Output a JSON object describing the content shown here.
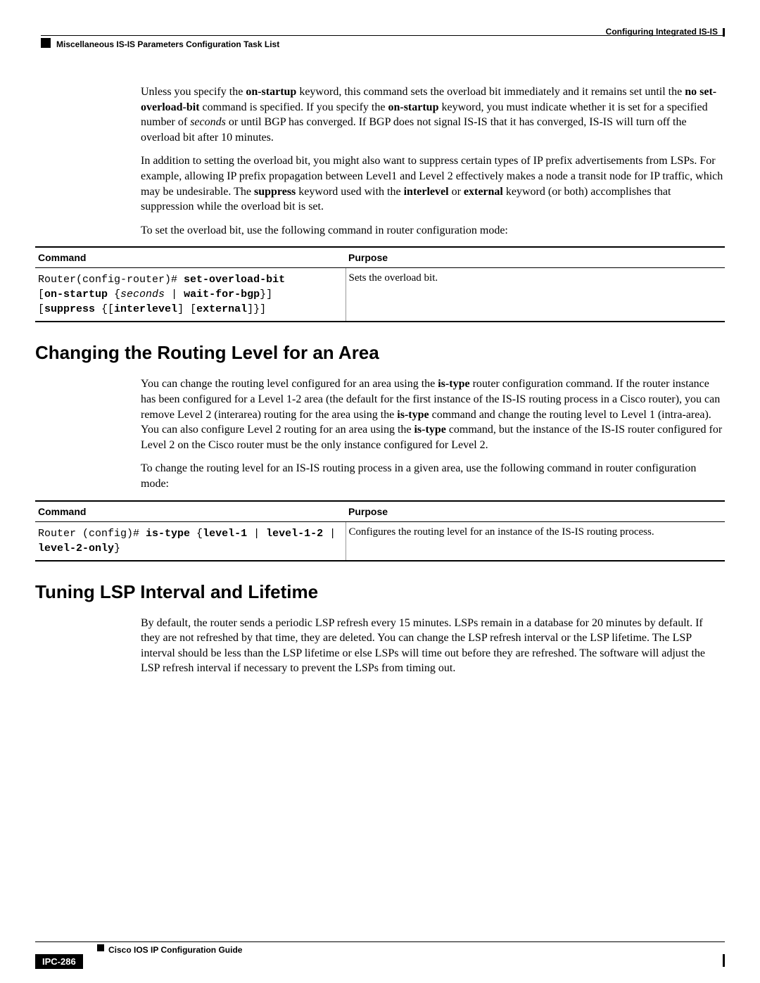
{
  "header": {
    "right_text": "Configuring Integrated IS-IS",
    "left_text": "Miscellaneous IS-IS Parameters Configuration Task List"
  },
  "para1": {
    "seg1": "Unless you specify the ",
    "b1": "on-startup",
    "seg2": " keyword, this command sets the overload bit immediately and it remains set until the ",
    "b2": "no set-overload-bit",
    "seg3": " command is specified. If you specify the ",
    "b3": "on-startup",
    "seg4": " keyword, you must indicate whether it is set for a specified number of ",
    "i1": "seconds",
    "seg5": " or until BGP has converged. If BGP does not signal IS-IS that it has converged, IS-IS will turn off the overload bit after 10 minutes."
  },
  "para2": {
    "seg1": "In addition to setting the overload bit, you might also want to suppress certain types of IP prefix advertisements from LSPs. For example, allowing IP prefix propagation between Level1 and Level 2 effectively makes a node a transit node for IP traffic, which may be undesirable. The ",
    "b1": "suppress",
    "seg2": " keyword used with the ",
    "b2": "interlevel",
    "seg3": " or ",
    "b3": "external",
    "seg4": " keyword (or both) accomplishes that suppression while the overload bit is set."
  },
  "para3": "To set the overload bit, use the following command in router configuration mode:",
  "table1": {
    "header_command": "Command",
    "header_purpose": "Purpose",
    "cmd_prefix": "Router(config-router)# ",
    "cmd_b1": "set-overload-bit",
    "cmd_line2a": "[",
    "cmd_b2": "on-startup",
    "cmd_line2b": " {",
    "cmd_i1": "seconds",
    "cmd_line2c": " | ",
    "cmd_b3": "wait-for-bgp",
    "cmd_line2d": "}]",
    "cmd_line3a": "[",
    "cmd_b4": "suppress",
    "cmd_line3b": " {[",
    "cmd_b5": "interlevel",
    "cmd_line3c": "] [",
    "cmd_b6": "external",
    "cmd_line3d": "]}]",
    "purpose": "Sets the overload bit."
  },
  "heading1": "Changing the Routing Level for an Area",
  "para4": {
    "seg1": "You can change the routing level configured for an area using the ",
    "b1": "is-type",
    "seg2": " router configuration command. If the router instance has been configured for a Level 1-2 area (the default for the first instance of the IS-IS routing process in a Cisco router), you can remove Level 2 (interarea) routing for the area using the ",
    "b2": "is-type",
    "seg3": " command and change the routing level to Level 1 (intra-area). You can also configure Level 2 routing for an area using the ",
    "b3": "is-type",
    "seg4": " command, but the instance of the IS-IS router configured for Level 2 on the Cisco router must be the only instance configured for Level 2."
  },
  "para5": "To change the routing level for an IS-IS routing process in a given area, use the following command in router configuration mode:",
  "table2": {
    "header_command": "Command",
    "header_purpose": "Purpose",
    "cmd_prefix": "Router (config)# ",
    "cmd_b1": "is-type",
    "cmd_seg1": " {",
    "cmd_b2": "level-1",
    "cmd_seg2": " | ",
    "cmd_b3": "level-1-2",
    "cmd_seg3": " | ",
    "cmd_b4": "level-2-only",
    "cmd_seg4": "}",
    "purpose": "Configures the routing level for an instance of the IS-IS routing process."
  },
  "heading2": "Tuning LSP Interval and Lifetime",
  "para6": "By default, the router sends a periodic LSP refresh every 15 minutes. LSPs remain in a database for 20 minutes by default. If they are not refreshed by that time, they are deleted. You can change the LSP refresh interval or the LSP lifetime. The LSP interval should be less than the LSP lifetime or else LSPs will time out before they are refreshed. The software will adjust the LSP refresh interval if necessary to prevent the LSPs from timing out.",
  "footer": {
    "title": "Cisco IOS IP Configuration Guide",
    "page_num": "IPC-286"
  }
}
